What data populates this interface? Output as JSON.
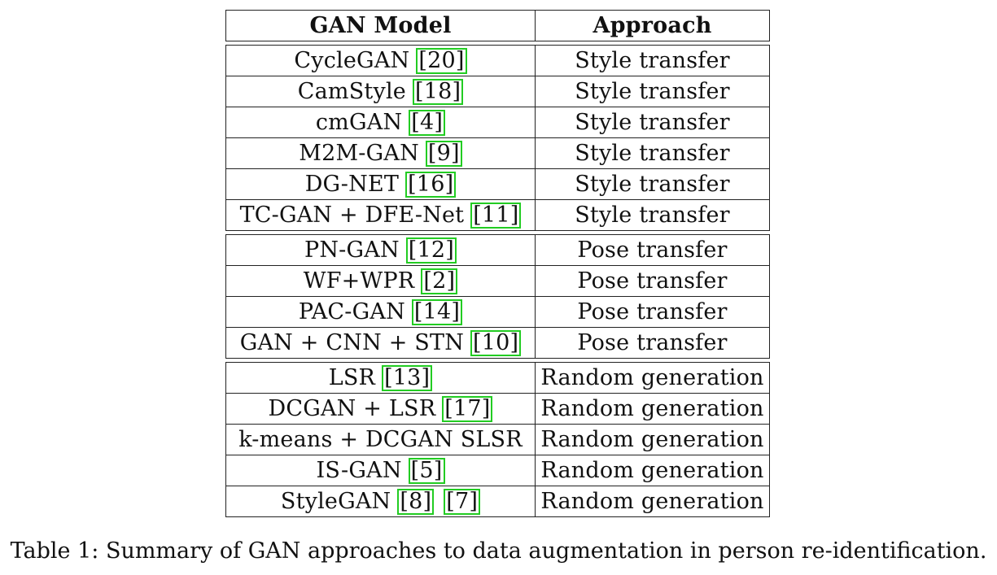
{
  "table": {
    "headers": [
      "GAN Model",
      "Approach"
    ],
    "groups": [
      [
        {
          "model": "CycleGAN",
          "refs": [
            "20"
          ],
          "approach": "Style transfer"
        },
        {
          "model": "CamStyle",
          "refs": [
            "18"
          ],
          "approach": "Style transfer"
        },
        {
          "model": "cmGAN",
          "refs": [
            "4"
          ],
          "approach": "Style transfer"
        },
        {
          "model": "M2M-GAN",
          "refs": [
            "9"
          ],
          "approach": "Style transfer"
        },
        {
          "model": "DG-NET",
          "refs": [
            "16"
          ],
          "approach": "Style transfer"
        },
        {
          "model": "TC-GAN + DFE-Net",
          "refs": [
            "11"
          ],
          "approach": "Style transfer"
        }
      ],
      [
        {
          "model": "PN-GAN",
          "refs": [
            "12"
          ],
          "approach": "Pose transfer"
        },
        {
          "model": "WF+WPR",
          "refs": [
            "2"
          ],
          "approach": "Pose transfer"
        },
        {
          "model": "PAC-GAN",
          "refs": [
            "14"
          ],
          "approach": "Pose transfer"
        },
        {
          "model": "GAN + CNN + STN",
          "refs": [
            "10"
          ],
          "approach": "Pose transfer"
        }
      ],
      [
        {
          "model": "LSR",
          "refs": [
            "13"
          ],
          "approach": "Random generation"
        },
        {
          "model": "DCGAN + LSR",
          "refs": [
            "17"
          ],
          "approach": "Random generation"
        },
        {
          "model": "k-means + DCGAN SLSR",
          "refs": [],
          "approach": "Random generation"
        },
        {
          "model": "IS-GAN",
          "refs": [
            "5"
          ],
          "approach": "Random generation"
        },
        {
          "model": "StyleGAN",
          "refs": [
            "8",
            "7"
          ],
          "approach": "Random generation"
        }
      ]
    ]
  },
  "caption": "Table 1: Summary of GAN approaches to data augmentation in person re-identification."
}
